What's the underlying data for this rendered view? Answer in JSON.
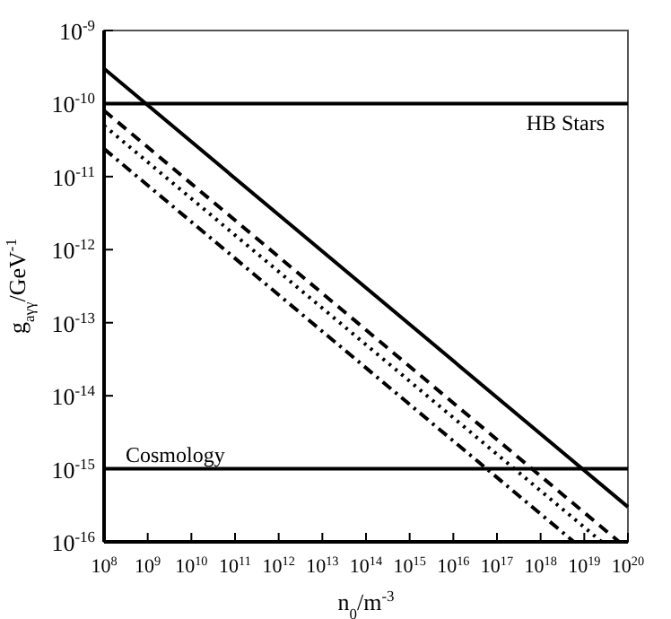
{
  "chart_data": {
    "type": "line",
    "xlabel": "n$_{0}$/m$^{-3}$",
    "ylabel": "g$_{aγγ}$/GeV$^{-1}$",
    "log": "xy",
    "grid": false,
    "xlim": [
      100000000.0,
      1e+20
    ],
    "ylim": [
      1e-16,
      1e-09
    ],
    "xticks": [
      {
        "value": 100000000.0,
        "label": "10$^{8}$"
      },
      {
        "value": 1000000000.0,
        "label": "10$^{9}$"
      },
      {
        "value": 10000000000.0,
        "label": "10$^{10}$"
      },
      {
        "value": 100000000000.0,
        "label": "10$^{11}$"
      },
      {
        "value": 1000000000000.0,
        "label": "10$^{12}$"
      },
      {
        "value": 10000000000000.0,
        "label": "10$^{13}$"
      },
      {
        "value": 100000000000000.0,
        "label": "10$^{14}$"
      },
      {
        "value": 1000000000000000.0,
        "label": "10$^{15}$"
      },
      {
        "value": 1e+16,
        "label": "10$^{16}$"
      },
      {
        "value": 1e+17,
        "label": "10$^{17}$"
      },
      {
        "value": 1e+18,
        "label": "10$^{18}$"
      },
      {
        "value": 1e+19,
        "label": "10$^{19}$"
      },
      {
        "value": 1e+20,
        "label": "10$^{20}$"
      }
    ],
    "yticks": [
      {
        "value": 1e-16,
        "label": "10$^{-16}$"
      },
      {
        "value": 1e-15,
        "label": "10$^{-15}$"
      },
      {
        "value": 1e-14,
        "label": "10$^{-14}$"
      },
      {
        "value": 1e-13,
        "label": "10$^{-13}$"
      },
      {
        "value": 1e-12,
        "label": "10$^{-12}$"
      },
      {
        "value": 1e-11,
        "label": "10$^{-11}$"
      },
      {
        "value": 1e-10,
        "label": "10$^{-10}$"
      },
      {
        "value": 1e-09,
        "label": "10$^{-9}$"
      }
    ],
    "series": [
      {
        "color": "#000000",
        "line_style": "solid",
        "x": [
          100000000.0,
          1e+20
        ],
        "values": [
          3e-10,
          3e-16
        ]
      },
      {
        "color": "#000000",
        "line_style": "dashed",
        "x": [
          100000000.0,
          6.3e+19
        ],
        "values": [
          8e-11,
          1e-16
        ]
      },
      {
        "color": "#000000",
        "line_style": "dotted",
        "x": [
          100000000.0,
          2.5e+19
        ],
        "values": [
          5e-11,
          1e-16
        ]
      },
      {
        "color": "#000000",
        "line_style": "dashdot",
        "x": [
          100000000.0,
          5.8e+18
        ],
        "values": [
          2.4e-11,
          1e-16
        ]
      }
    ],
    "ref_lines": [
      {
        "axis": "y",
        "value": 1e-10,
        "label": "HB Stars",
        "color": "#000000"
      },
      {
        "axis": "y",
        "value": 1e-15,
        "label": "Cosmology",
        "color": "#000000"
      }
    ]
  }
}
